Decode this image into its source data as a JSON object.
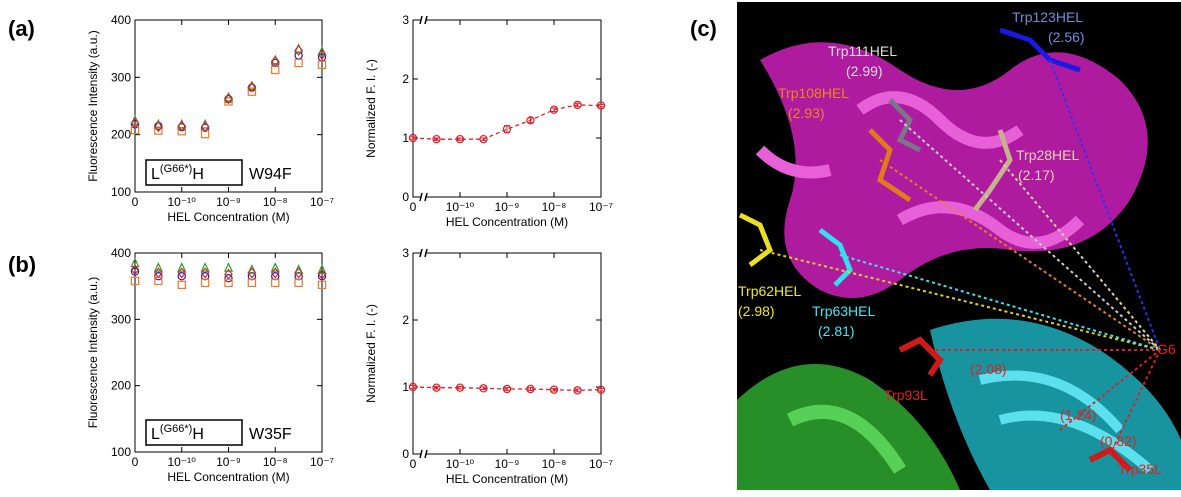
{
  "panel_labels": [
    "(a)",
    "(b)",
    "(c)"
  ],
  "chart_data": [
    {
      "type": "scatter",
      "xlabel": "HEL Concentration (M)",
      "ylabel": "Fluorescence Intensity (a.u.)",
      "categories": [
        "0",
        null,
        "10⁻¹⁰",
        null,
        "10⁻⁹",
        null,
        "10⁻⁸",
        null,
        "10⁻⁷"
      ],
      "ylim": [
        100,
        400
      ],
      "yticks": [
        100,
        200,
        300,
        400
      ],
      "annotation": {
        "main": "L",
        "superscript": "(G66*)",
        "suffix": "H",
        "mutant": "W94F"
      },
      "series": [
        {
          "color": "#1a1acc",
          "marker": "circle",
          "values": [
            218,
            215,
            213,
            212,
            262,
            282,
            325,
            338,
            335
          ]
        },
        {
          "color": "#f07820",
          "marker": "square",
          "values": [
            208,
            207,
            206,
            201,
            258,
            275,
            313,
            325,
            322
          ]
        },
        {
          "color": "#2aa02a",
          "marker": "triangle",
          "values": [
            225,
            218,
            218,
            218,
            265,
            285,
            330,
            350,
            345
          ]
        },
        {
          "color": "#d62728",
          "marker": "diamond",
          "values": [
            220,
            214,
            215,
            214,
            263,
            283,
            328,
            347,
            340
          ]
        }
      ]
    },
    {
      "type": "line",
      "xlabel": "HEL Concentration (M)",
      "ylabel": "Normalized F. I. (-)",
      "categories": [
        "0",
        null,
        "10⁻¹⁰",
        null,
        "10⁻⁹",
        null,
        "10⁻⁸",
        null,
        "10⁻⁷"
      ],
      "ylim": [
        0,
        3
      ],
      "yticks": [
        0,
        1,
        2,
        3
      ],
      "series": [
        {
          "color": "#e0202a",
          "marker": "circle",
          "values": [
            1,
            0.98,
            0.98,
            0.98,
            1.15,
            1.3,
            1.48,
            1.56,
            1.55
          ],
          "errors": [
            0.02,
            0.02,
            0.02,
            0.02,
            0.06,
            0.04,
            0.03,
            0.03,
            0.02
          ]
        }
      ]
    },
    {
      "type": "scatter",
      "xlabel": "HEL Concentration (M)",
      "ylabel": "Fluorescence Intensity (a.u.)",
      "categories": [
        "0",
        null,
        "10⁻¹⁰",
        null,
        "10⁻⁹",
        null,
        "10⁻⁸",
        null,
        "10⁻⁷"
      ],
      "ylim": [
        100,
        400
      ],
      "yticks": [
        100,
        200,
        300,
        400
      ],
      "annotation": {
        "main": "L",
        "superscript": "(G66*)",
        "suffix": "H",
        "mutant": "W35F"
      },
      "series": [
        {
          "color": "#1a1acc",
          "marker": "circle",
          "values": [
            372,
            365,
            365,
            365,
            362,
            365,
            365,
            365,
            365
          ]
        },
        {
          "color": "#f07820",
          "marker": "square",
          "values": [
            358,
            358,
            352,
            355,
            355,
            355,
            355,
            355,
            352
          ]
        },
        {
          "color": "#2aa02a",
          "marker": "triangle",
          "values": [
            385,
            378,
            378,
            378,
            378,
            375,
            378,
            375,
            375
          ]
        },
        {
          "color": "#d62728",
          "marker": "diamond",
          "values": [
            375,
            370,
            370,
            370,
            368,
            370,
            370,
            370,
            368
          ]
        }
      ]
    },
    {
      "type": "line",
      "xlabel": "HEL Concentration (M)",
      "ylabel": "Normalized F. I. (-)",
      "categories": [
        "0",
        null,
        "10⁻¹⁰",
        null,
        "10⁻⁹",
        null,
        "10⁻⁸",
        null,
        "10⁻⁷"
      ],
      "ylim": [
        0,
        3
      ],
      "yticks": [
        0,
        1,
        2,
        3
      ],
      "series": [
        {
          "color": "#e0202a",
          "marker": "circle",
          "values": [
            1,
            0.99,
            0.99,
            0.98,
            0.97,
            0.97,
            0.96,
            0.95,
            0.96
          ],
          "errors": [
            0.02,
            0.02,
            0.02,
            0.02,
            0.02,
            0.02,
            0.02,
            0.02,
            0.02
          ]
        }
      ]
    }
  ],
  "structure": {
    "labels": [
      "Trp123HEL",
      "(2.56)",
      "Trp111HEL",
      "(2.99)",
      "Trp108HEL",
      "(2.93)",
      "Trp28HEL",
      "(2.17)",
      "Trp62HEL",
      "(2.98)",
      "Trp63HEL",
      "(2.81)",
      "(2.08)",
      "G6",
      "Trp93L",
      "(1.24)",
      "(0.82)",
      "Trp35L"
    ]
  }
}
